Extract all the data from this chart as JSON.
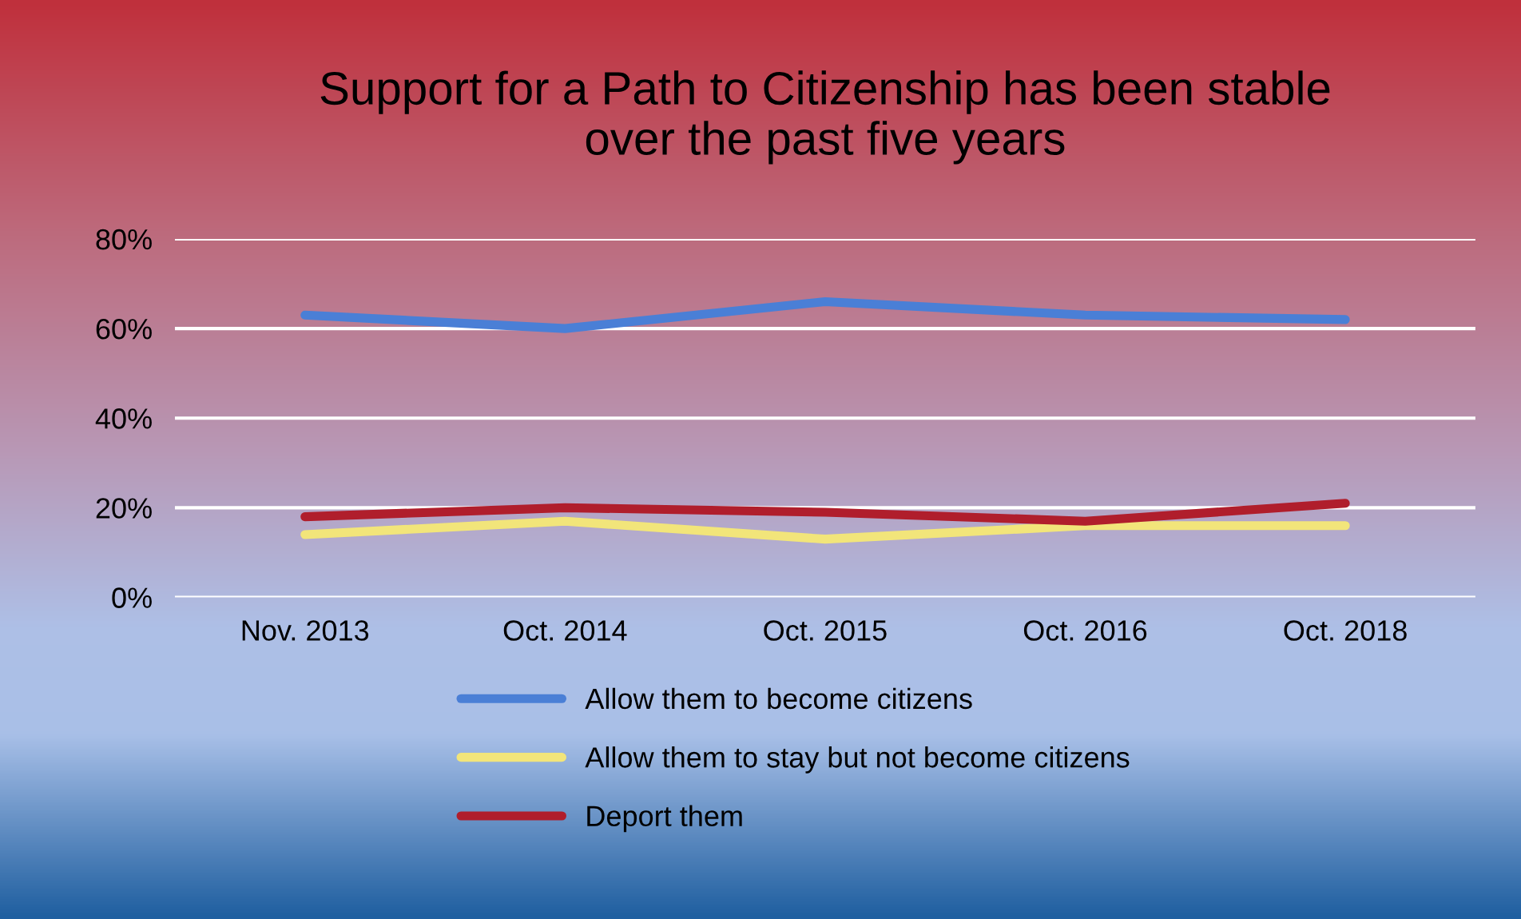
{
  "chart_data": {
    "type": "line",
    "title": "Support for a Path to Citizenship has been stable\nover the past five years",
    "categories": [
      "Nov. 2013",
      "Oct. 2014",
      "Oct. 2015",
      "Oct. 2016",
      "Oct. 2018"
    ],
    "series": [
      {
        "name": "Allow them to become citizens",
        "color": "#4a7fd6",
        "values": [
          63,
          60,
          66,
          63,
          62
        ]
      },
      {
        "name": "Allow them to stay but not become citizens",
        "color": "#f2e57a",
        "values": [
          14,
          17,
          13,
          16,
          16
        ]
      },
      {
        "name": "Deport them",
        "color": "#b01e2c",
        "values": [
          18,
          20,
          19,
          17,
          21
        ]
      }
    ],
    "ylim": [
      0,
      80
    ],
    "yticks": [
      {
        "value": 0,
        "label": "0%"
      },
      {
        "value": 20,
        "label": "20%"
      },
      {
        "value": 40,
        "label": "40%"
      },
      {
        "value": 60,
        "label": "60%"
      },
      {
        "value": 80,
        "label": "80%"
      }
    ],
    "grid": "y",
    "legend": "bottom",
    "marker": "none",
    "line_style": "solid"
  }
}
